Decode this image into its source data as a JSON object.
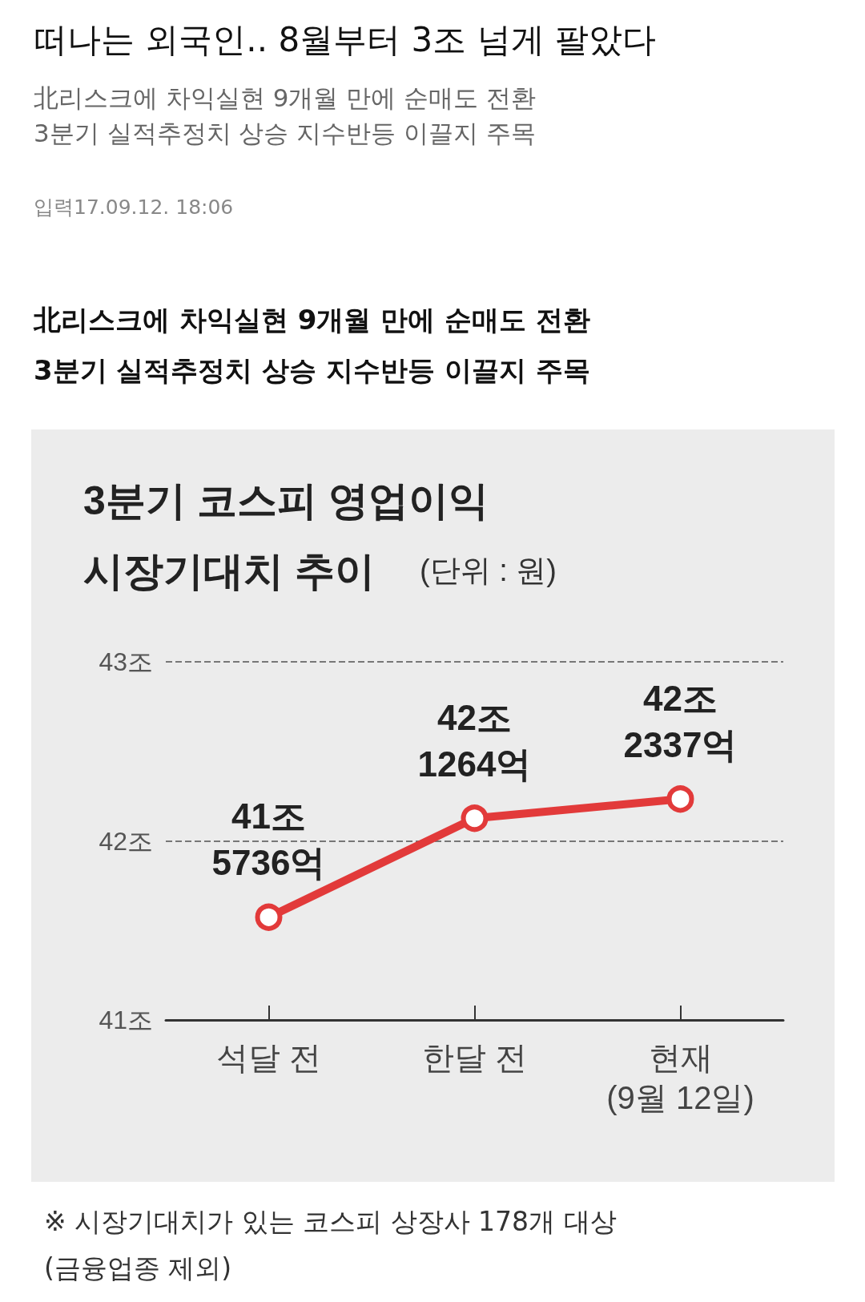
{
  "chart_data": {
    "type": "line",
    "title": "3분기 코스피 영업이익\n시장기대치 추이",
    "subtitle": "(단위 : 원)",
    "categories": [
      "석달 전",
      "한달 전",
      "현재\n(9월 12일)"
    ],
    "series": [
      {
        "color": "#e23a3a",
        "values": [
          41.5736,
          42.1264,
          42.2337
        ]
      }
    ],
    "value_labels": [
      "41조\n5736억",
      "42조\n1264억",
      "42조\n2337억"
    ],
    "ylim": [
      41,
      43
    ],
    "yticks": [
      {
        "value": 41,
        "label": "41조"
      },
      {
        "value": 42,
        "label": "42조"
      },
      {
        "value": 43,
        "label": "43조"
      }
    ],
    "grid": "y",
    "marker": "circle",
    "line_style": "solid",
    "annotations": [
      "떠나는 외국인.. 8월부터 3조 넘게 팔았다",
      "北리스크에 차익실현 9개월 만에 순매도 전환\n3분기 실적추정치 상승 지수반등 이끌지 주목",
      "입력17.09.12. 18:06",
      "※ 시장기대치가 있는 코스피 상장사 178개 대상\n(금융업종 제외)"
    ]
  }
}
